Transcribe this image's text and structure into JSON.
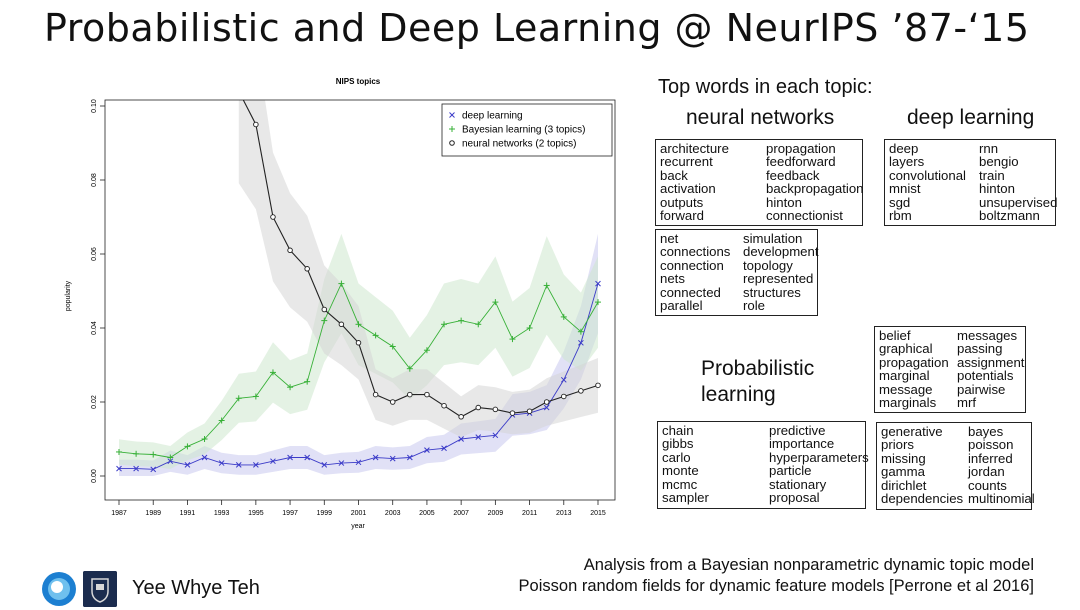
{
  "slide": {
    "title": "Probabilistic and Deep Learning @ NeurIPS ’87-‘15",
    "author": "Yee Whye Teh",
    "footnote_line1": "Analysis from a Bayesian nonparametric dynamic topic model",
    "footnote_line2": "Poisson random fields for dynamic feature models [Perrone et al 2016]"
  },
  "topwords": {
    "heading": "Top words in each topic:",
    "neural_networks": {
      "label": "neural networks",
      "box1": {
        "left": [
          "architecture",
          "recurrent",
          "back",
          "activation",
          "outputs",
          "forward"
        ],
        "right": [
          "propagation",
          "feedforward",
          "feedback",
          "backpropagation",
          "hinton",
          "connectionist"
        ]
      },
      "box2": {
        "left": [
          "net",
          "connections",
          "connection",
          "nets",
          "connected",
          "parallel"
        ],
        "right": [
          "simulation",
          "development",
          "topology",
          "represented",
          "structures",
          "role"
        ]
      }
    },
    "deep_learning": {
      "label": "deep learning",
      "box1": {
        "left": [
          "deep",
          "layers",
          "convolutional",
          "mnist",
          "sgd",
          "rbm"
        ],
        "right": [
          "rnn",
          "bengio",
          "train",
          "hinton",
          "unsupervised",
          "boltzmann"
        ]
      }
    },
    "probabilistic": {
      "label_line1": "Probabilistic",
      "label_line2": "learning",
      "box1": {
        "left": [
          "belief",
          "graphical",
          "propagation",
          "marginal",
          "message",
          "marginals"
        ],
        "right": [
          "messages",
          "passing",
          "assignment",
          "potentials",
          "pairwise",
          "mrf"
        ]
      },
      "box2": {
        "left": [
          "chain",
          "gibbs",
          "carlo",
          "monte",
          "mcmc",
          "sampler"
        ],
        "right": [
          "predictive",
          "importance",
          "hyperparameters",
          "particle",
          "stationary",
          "proposal"
        ]
      },
      "box3": {
        "left": [
          "generative",
          "priors",
          "missing",
          "gamma",
          "dirichlet",
          "dependencies"
        ],
        "right": [
          "bayes",
          "poisson",
          "inferred",
          "jordan",
          "counts",
          "multinomial"
        ]
      }
    }
  },
  "chart_data": {
    "type": "line",
    "title": "NIPS topics",
    "xlabel": "year",
    "ylabel": "popularity",
    "xlim": [
      1987,
      2015
    ],
    "ylim": [
      0,
      0.1
    ],
    "xticks": [
      "1987",
      "1989",
      "1991",
      "1993",
      "1995",
      "1997",
      "1999",
      "2001",
      "2003",
      "2005",
      "2007",
      "2009",
      "2011",
      "2013",
      "2015"
    ],
    "yticks": [
      "0.00",
      "0.02",
      "0.04",
      "0.06",
      "0.08",
      "0.10"
    ],
    "legend_position": "top-right",
    "x": [
      1987,
      1988,
      1989,
      1990,
      1991,
      1992,
      1993,
      1994,
      1995,
      1996,
      1997,
      1998,
      1999,
      2000,
      2001,
      2002,
      2003,
      2004,
      2005,
      2006,
      2007,
      2008,
      2009,
      2010,
      2011,
      2012,
      2013,
      2014,
      2015
    ],
    "series": [
      {
        "name": "deep learning",
        "marker": "x",
        "color": "#3b3bc8",
        "values": [
          0.002,
          0.002,
          0.0018,
          0.004,
          0.003,
          0.005,
          0.0035,
          0.003,
          0.003,
          0.004,
          0.005,
          0.005,
          0.003,
          0.0035,
          0.0037,
          0.005,
          0.0047,
          0.005,
          0.007,
          0.0075,
          0.01,
          0.0105,
          0.011,
          0.0165,
          0.017,
          0.0185,
          0.026,
          0.036,
          0.052
        ]
      },
      {
        "name": "Bayesian learning (3 topics)",
        "marker": "+",
        "color": "#37b037",
        "values": [
          0.0065,
          0.006,
          0.0058,
          0.005,
          0.008,
          0.01,
          0.015,
          0.021,
          0.0215,
          0.028,
          0.024,
          0.0255,
          0.042,
          0.052,
          0.041,
          0.038,
          0.035,
          0.029,
          0.034,
          0.041,
          0.042,
          0.041,
          0.047,
          0.037,
          0.04,
          0.0515,
          0.043,
          0.039,
          0.047
        ]
      },
      {
        "name": "neural networks (2 topics)",
        "marker": "o",
        "color": "#222222",
        "values": [
          null,
          null,
          null,
          null,
          null,
          null,
          null,
          0.104,
          0.095,
          0.07,
          0.061,
          0.056,
          0.045,
          0.041,
          0.036,
          0.022,
          0.02,
          0.022,
          0.022,
          0.019,
          0.016,
          0.0185,
          0.018,
          0.017,
          0.0175,
          0.02,
          0.0215,
          0.023,
          0.0245
        ]
      }
    ]
  }
}
